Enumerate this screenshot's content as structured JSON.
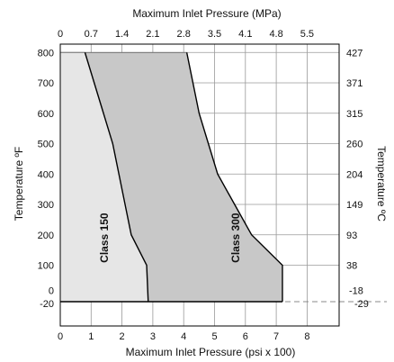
{
  "chart_data": {
    "type": "area",
    "title": "",
    "x_bottom": {
      "label": "Maximum Inlet Pressure (psi x 100)",
      "ticks": [
        0,
        1,
        2,
        3,
        4,
        5,
        6,
        7,
        8
      ],
      "range": [
        0,
        9
      ]
    },
    "x_top": {
      "label": "Maximum Inlet Pressure (MPa)",
      "ticks": [
        {
          "label": "0",
          "psi_hundreds": 0
        },
        {
          "label": "0.7",
          "psi_hundreds": 1
        },
        {
          "label": "1.4",
          "psi_hundreds": 2
        },
        {
          "label": "2.1",
          "psi_hundreds": 3
        },
        {
          "label": "2.8",
          "psi_hundreds": 4
        },
        {
          "label": "3.5",
          "psi_hundreds": 5
        },
        {
          "label": "4.1",
          "psi_hundreds": 6
        },
        {
          "label": "4.8",
          "psi_hundreds": 7
        },
        {
          "label": "5.5",
          "psi_hundreds": 8
        }
      ]
    },
    "y_left": {
      "label": "Temperature ºF",
      "ticks": [
        {
          "label": "-20",
          "value": -20
        },
        {
          "label": "0",
          "value": 0
        },
        {
          "label": "100",
          "value": 100
        },
        {
          "label": "200",
          "value": 200
        },
        {
          "label": "300",
          "value": 300
        },
        {
          "label": "400",
          "value": 400
        },
        {
          "label": "500",
          "value": 500
        },
        {
          "label": "600",
          "value": 600
        },
        {
          "label": "700",
          "value": 700
        },
        {
          "label": "800",
          "value": 800
        }
      ],
      "range": [
        -20,
        880
      ]
    },
    "y_right": {
      "label": "Temperature ºC",
      "ticks": [
        {
          "label": "-29",
          "value": -20
        },
        {
          "label": "-18",
          "value": 0
        },
        {
          "label": "38",
          "value": 100
        },
        {
          "label": "93",
          "value": 200
        },
        {
          "label": "149",
          "value": 300
        },
        {
          "label": "204",
          "value": 400
        },
        {
          "label": "260",
          "value": 500
        },
        {
          "label": "315",
          "value": 600
        },
        {
          "label": "371",
          "value": 700
        },
        {
          "label": "427",
          "value": 800
        }
      ]
    },
    "series": [
      {
        "name": "Class 150",
        "color": "#e6e6e6",
        "points": [
          {
            "temp_f": -20,
            "psi_hundreds": 2.85
          },
          {
            "temp_f": 100,
            "psi_hundreds": 2.8
          },
          {
            "temp_f": 200,
            "psi_hundreds": 2.3
          },
          {
            "temp_f": 300,
            "psi_hundreds": 2.1
          },
          {
            "temp_f": 400,
            "psi_hundreds": 1.9
          },
          {
            "temp_f": 500,
            "psi_hundreds": 1.7
          },
          {
            "temp_f": 600,
            "psi_hundreds": 1.4
          },
          {
            "temp_f": 700,
            "psi_hundreds": 1.1
          },
          {
            "temp_f": 800,
            "psi_hundreds": 0.8
          }
        ]
      },
      {
        "name": "Class 300",
        "color": "#c8c8c8",
        "points": [
          {
            "temp_f": -20,
            "psi_hundreds": 7.2
          },
          {
            "temp_f": 100,
            "psi_hundreds": 7.2
          },
          {
            "temp_f": 200,
            "psi_hundreds": 6.2
          },
          {
            "temp_f": 300,
            "psi_hundreds": 5.65
          },
          {
            "temp_f": 400,
            "psi_hundreds": 5.1
          },
          {
            "temp_f": 500,
            "psi_hundreds": 4.8
          },
          {
            "temp_f": 600,
            "psi_hundreds": 4.5
          },
          {
            "temp_f": 700,
            "psi_hundreds": 4.3
          },
          {
            "temp_f": 800,
            "psi_hundreds": 4.1
          }
        ]
      }
    ],
    "reference_line": {
      "temp_f": -20,
      "style": "dashed"
    },
    "grid": true,
    "legend": "none"
  }
}
